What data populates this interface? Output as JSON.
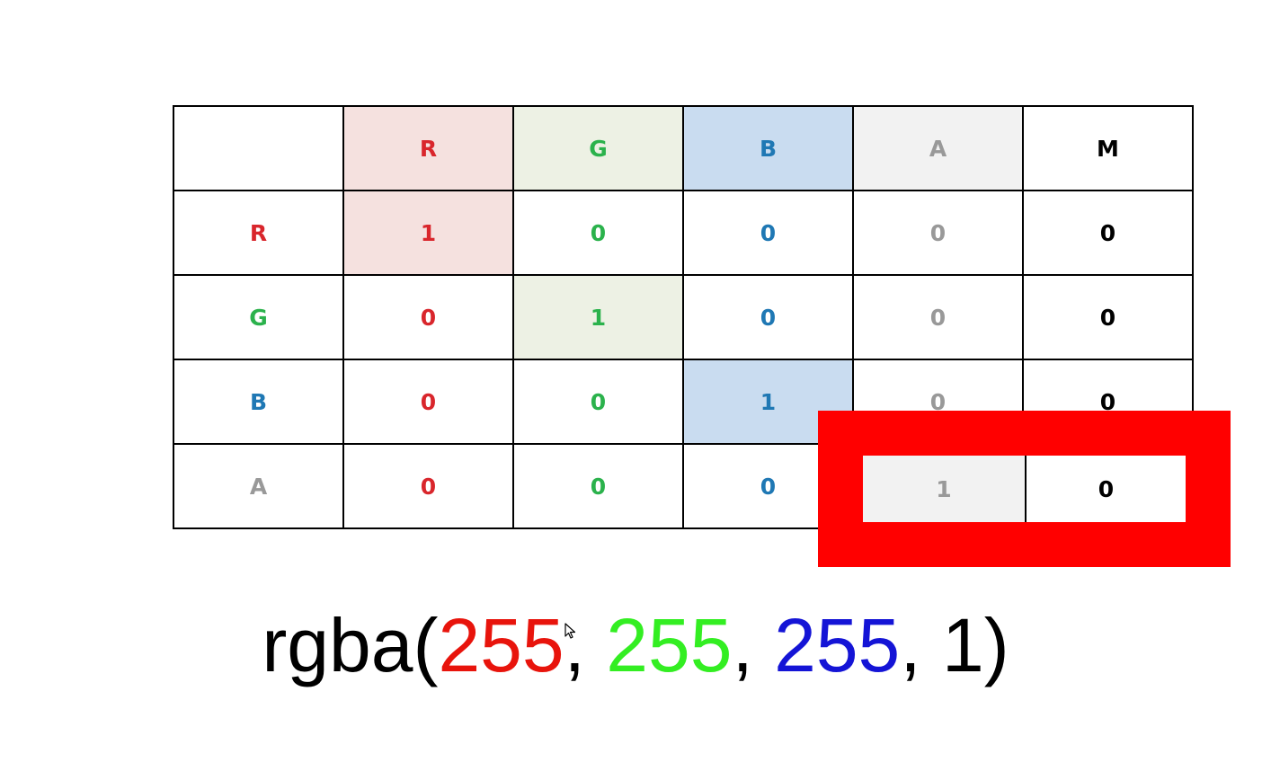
{
  "table": {
    "header": [
      "",
      "R",
      "G",
      "B",
      "A",
      "M"
    ],
    "rows": [
      [
        "R",
        "1",
        "0",
        "0",
        "0",
        "0"
      ],
      [
        "G",
        "0",
        "1",
        "0",
        "0",
        "0"
      ],
      [
        "B",
        "0",
        "0",
        "1",
        "0",
        "0"
      ],
      [
        "A",
        "0",
        "0",
        "0",
        "1",
        "0"
      ]
    ]
  },
  "colors": {
    "R": "#d9262c",
    "G": "#2bb24c",
    "B": "#1f78b4",
    "A": "#999999",
    "M": "#000000",
    "R_bg": "#f5e1df",
    "G_bg": "#edf1e4",
    "B_bg": "#c9dcf0",
    "A_bg": "#f2f2f2",
    "highlight": "#ff0000"
  },
  "formula": {
    "prefix": "rgba(",
    "r": "255",
    "sep1": ", ",
    "g": "255",
    "sep2": ", ",
    "b": "255",
    "sep3": ", ",
    "a": "1",
    "suffix": ")",
    "r_color": "#e8140c",
    "g_color": "#33ee22",
    "b_color": "#1414d6"
  }
}
